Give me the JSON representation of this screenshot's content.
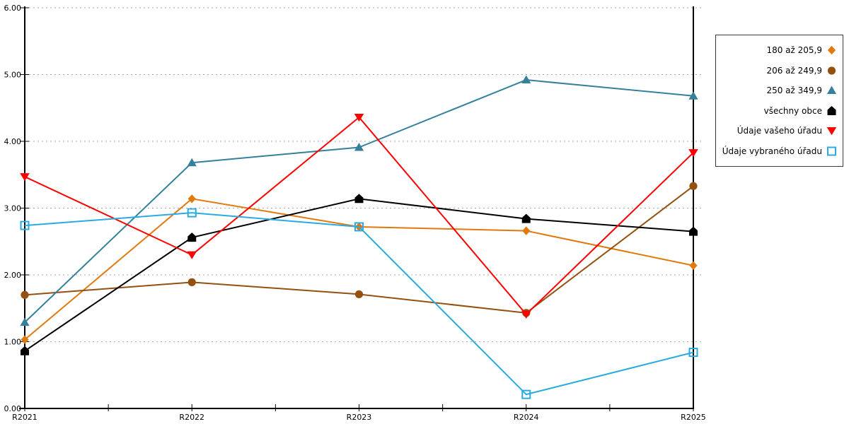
{
  "chart_data": {
    "type": "line",
    "title": "",
    "xlabel": "",
    "ylabel": "",
    "categories": [
      "R2021",
      "R2022",
      "R2023",
      "R2024",
      "R2025"
    ],
    "y_ticks": [
      "0.00",
      "1.00",
      "2.00",
      "3.00",
      "4.00",
      "5.00",
      "6.00"
    ],
    "ylim": [
      0,
      6
    ],
    "grid": "horizontal-dotted",
    "grid_color": "#ababab",
    "axis_color": "#000000",
    "legend_position": "right-outside",
    "series": [
      {
        "name": "180 až 205,9",
        "marker": "diamond",
        "color": "#e2790f",
        "values": [
          1.03,
          3.14,
          2.72,
          2.66,
          2.14
        ]
      },
      {
        "name": "206 až 249,9",
        "marker": "circle",
        "color": "#94500f",
        "values": [
          1.7,
          1.89,
          1.71,
          1.43,
          3.33
        ]
      },
      {
        "name": "250 až 349,9",
        "marker": "triangle-up",
        "color": "#35809a",
        "values": [
          1.29,
          3.68,
          3.91,
          4.92,
          4.68
        ]
      },
      {
        "name": "všechny obce",
        "marker": "pentagon",
        "color": "#000000",
        "values": [
          0.86,
          2.56,
          3.14,
          2.84,
          2.65
        ]
      },
      {
        "name": "Údaje vašeho úřadu",
        "marker": "triangle-down",
        "color": "#ff0000",
        "values": [
          3.47,
          2.3,
          4.36,
          1.41,
          3.83
        ]
      },
      {
        "name": "Údaje vybraného úřadu",
        "marker": "square-open",
        "color": "#29abe2",
        "values": [
          2.74,
          2.93,
          2.72,
          0.21,
          0.84
        ]
      }
    ]
  }
}
